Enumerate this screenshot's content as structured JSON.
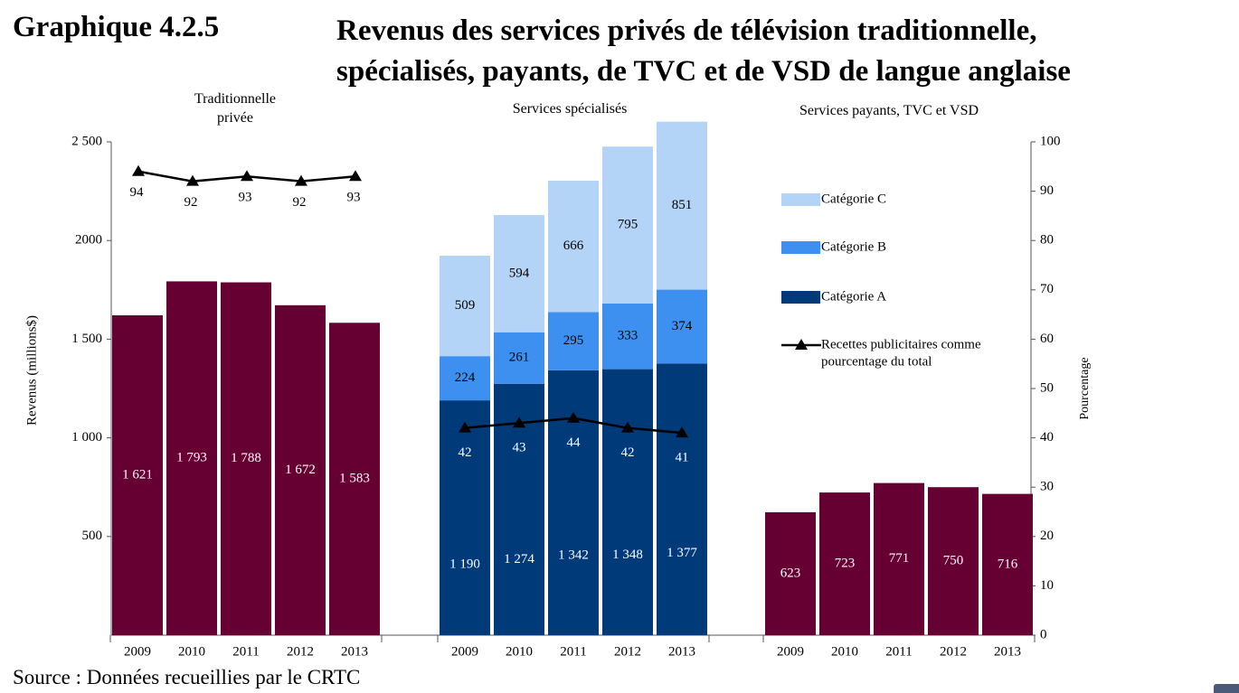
{
  "figure": {
    "number": "Graphique 4.2.5",
    "title_line1": "Revenus des services privés de télévision traditionnelle,",
    "title_line2": "spécialisés, payants, de TVC et de VSD de langue anglaise",
    "source": "Source : Données recueillies par le CRTC"
  },
  "colors": {
    "maroon": "#660033",
    "category_a": "#003a78",
    "category_b": "#3d8ff0",
    "category_c": "#b3d3f7",
    "line": "#000000"
  },
  "chart_data": {
    "type": "bar",
    "ylabel_left": "Revenus (millions$)",
    "ylabel_right": "Pourcentage",
    "ylim_left": [
      0,
      2500
    ],
    "yticks_left": [
      {
        "value": 500,
        "label": "500"
      },
      {
        "value": 1000,
        "label": "1 000"
      },
      {
        "value": 1500,
        "label": "1 500"
      },
      {
        "value": 2000,
        "label": "2000"
      },
      {
        "value": 2500,
        "label": "2 500"
      }
    ],
    "ylim_right": [
      0,
      100
    ],
    "yticks_right": [
      0,
      10,
      20,
      30,
      40,
      50,
      60,
      70,
      80,
      90,
      100
    ],
    "legend_position": "right",
    "legend": [
      {
        "key": "C",
        "label": "Catégorie C",
        "kind": "box"
      },
      {
        "key": "B",
        "label": "Catégorie B",
        "kind": "box"
      },
      {
        "key": "A",
        "label": "Catégorie A",
        "kind": "box"
      },
      {
        "key": "line",
        "label_line1": "Recettes publicitaires  comme",
        "label_line2": "pourcentage du total",
        "kind": "line"
      }
    ],
    "panels": [
      {
        "title_lines": [
          "Traditionnelle",
          "privée"
        ],
        "categories": [
          "2009",
          "2010",
          "2011",
          "2012",
          "2013"
        ],
        "series": [
          {
            "key": "total",
            "values": [
              1621,
              1793,
              1788,
              1672,
              1583
            ],
            "labels": [
              "1 621",
              "1 793",
              "1 788",
              "1 672",
              "1 583"
            ]
          }
        ],
        "ad_share": [
          94,
          92,
          93,
          92,
          93
        ]
      },
      {
        "title_lines": [
          "Services spécialisés"
        ],
        "categories": [
          "2009",
          "2010",
          "2011",
          "2012",
          "2013"
        ],
        "series": [
          {
            "key": "A",
            "name": "Catégorie A",
            "values": [
              1190,
              1274,
              1342,
              1348,
              1377
            ],
            "labels": [
              "1 190",
              "1 274",
              "1 342",
              "1 348",
              "1 377"
            ]
          },
          {
            "key": "B",
            "name": "Catégorie B",
            "values": [
              224,
              261,
              295,
              333,
              374
            ],
            "labels": [
              "224",
              "261",
              "295",
              "333",
              "374"
            ]
          },
          {
            "key": "C",
            "name": "Catégorie C",
            "values": [
              509,
              594,
              666,
              795,
              851
            ],
            "labels": [
              "509",
              "594",
              "666",
              "795",
              "851"
            ]
          }
        ],
        "ad_share": [
          42,
          43,
          44,
          42,
          41
        ]
      },
      {
        "title_lines": [
          "Services payants, TVC et VSD"
        ],
        "categories": [
          "2009",
          "2010",
          "2011",
          "2012",
          "2013"
        ],
        "series": [
          {
            "key": "total",
            "values": [
              623,
              723,
              771,
              750,
              716
            ],
            "labels": [
              "623",
              "723",
              "771",
              "750",
              "716"
            ]
          }
        ],
        "ad_share": null
      }
    ]
  }
}
